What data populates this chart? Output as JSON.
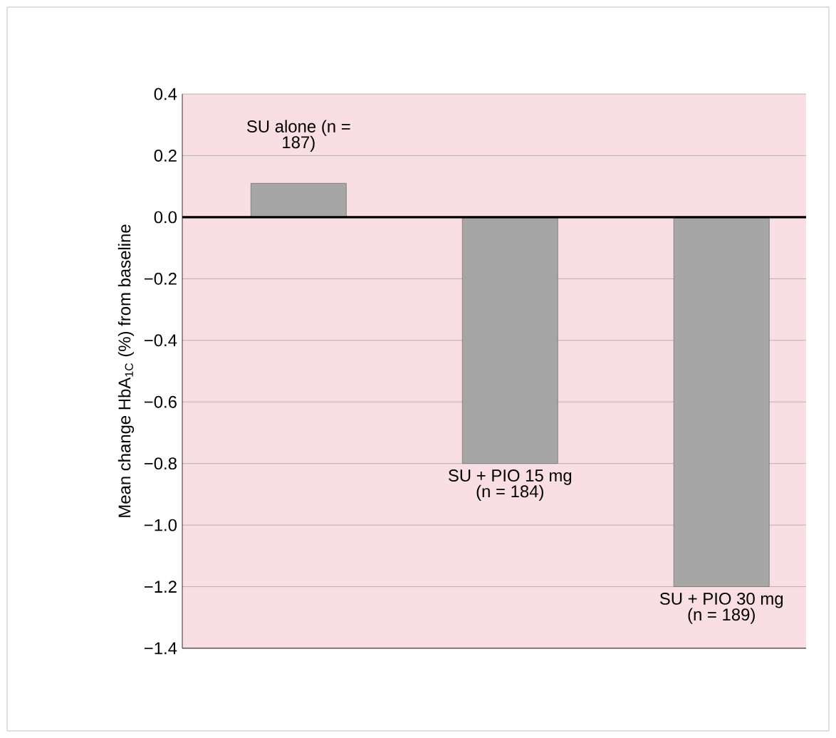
{
  "chart_data": {
    "type": "bar",
    "ylabel": "Mean change HbA$_{1C}$ (%) from baseline",
    "categories": [
      "SU alone (n = 187)",
      "SU + PIO 15 mg (n = 184)",
      "SU + PIO 30 mg (n = 189)"
    ],
    "values": [
      0.11,
      -0.8,
      -1.2
    ],
    "color": "#a6a6a6",
    "ylim": [
      -1.4,
      0.4
    ],
    "yticks": [
      {
        "value": 0.4,
        "label": "0.4"
      },
      {
        "value": 0.2,
        "label": "0.2"
      },
      {
        "value": 0.0,
        "label": "0.0"
      },
      {
        "value": -0.2,
        "label": "−0.2"
      },
      {
        "value": -0.4,
        "label": "−0.4"
      },
      {
        "value": -0.6,
        "label": "−0.6"
      },
      {
        "value": -0.8,
        "label": "−0.8"
      },
      {
        "value": -1.0,
        "label": "−1.0"
      },
      {
        "value": -1.2,
        "label": "−1.2"
      },
      {
        "value": -1.4,
        "label": "−1.4"
      }
    ],
    "grid": "y"
  }
}
